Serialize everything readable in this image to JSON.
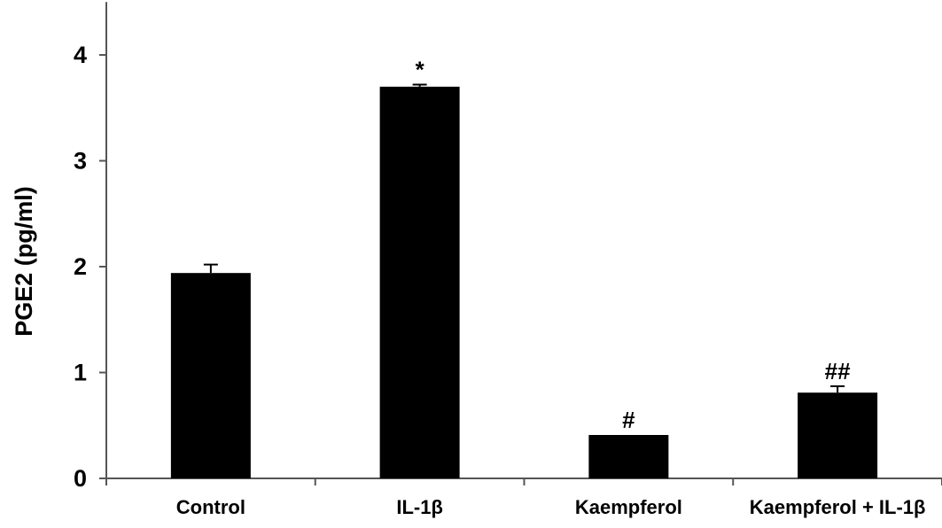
{
  "chart_data": {
    "type": "bar",
    "title": "",
    "xlabel": "",
    "ylabel": "PGE2 (pg/ml)",
    "ylim": [
      0,
      4.5
    ],
    "yticks": [
      0,
      1,
      2,
      3,
      4
    ],
    "grid": false,
    "legend": "none",
    "bar_color": "#000000",
    "categories": [
      "Control",
      "IL-1β",
      "Kaempferol",
      "Kaempferol + IL-1β"
    ],
    "values": [
      1.94,
      3.7,
      0.41,
      0.81
    ],
    "errors": [
      0.08,
      0.02,
      0.0,
      0.06
    ],
    "annotations": [
      "",
      "*",
      "#",
      "##"
    ]
  }
}
